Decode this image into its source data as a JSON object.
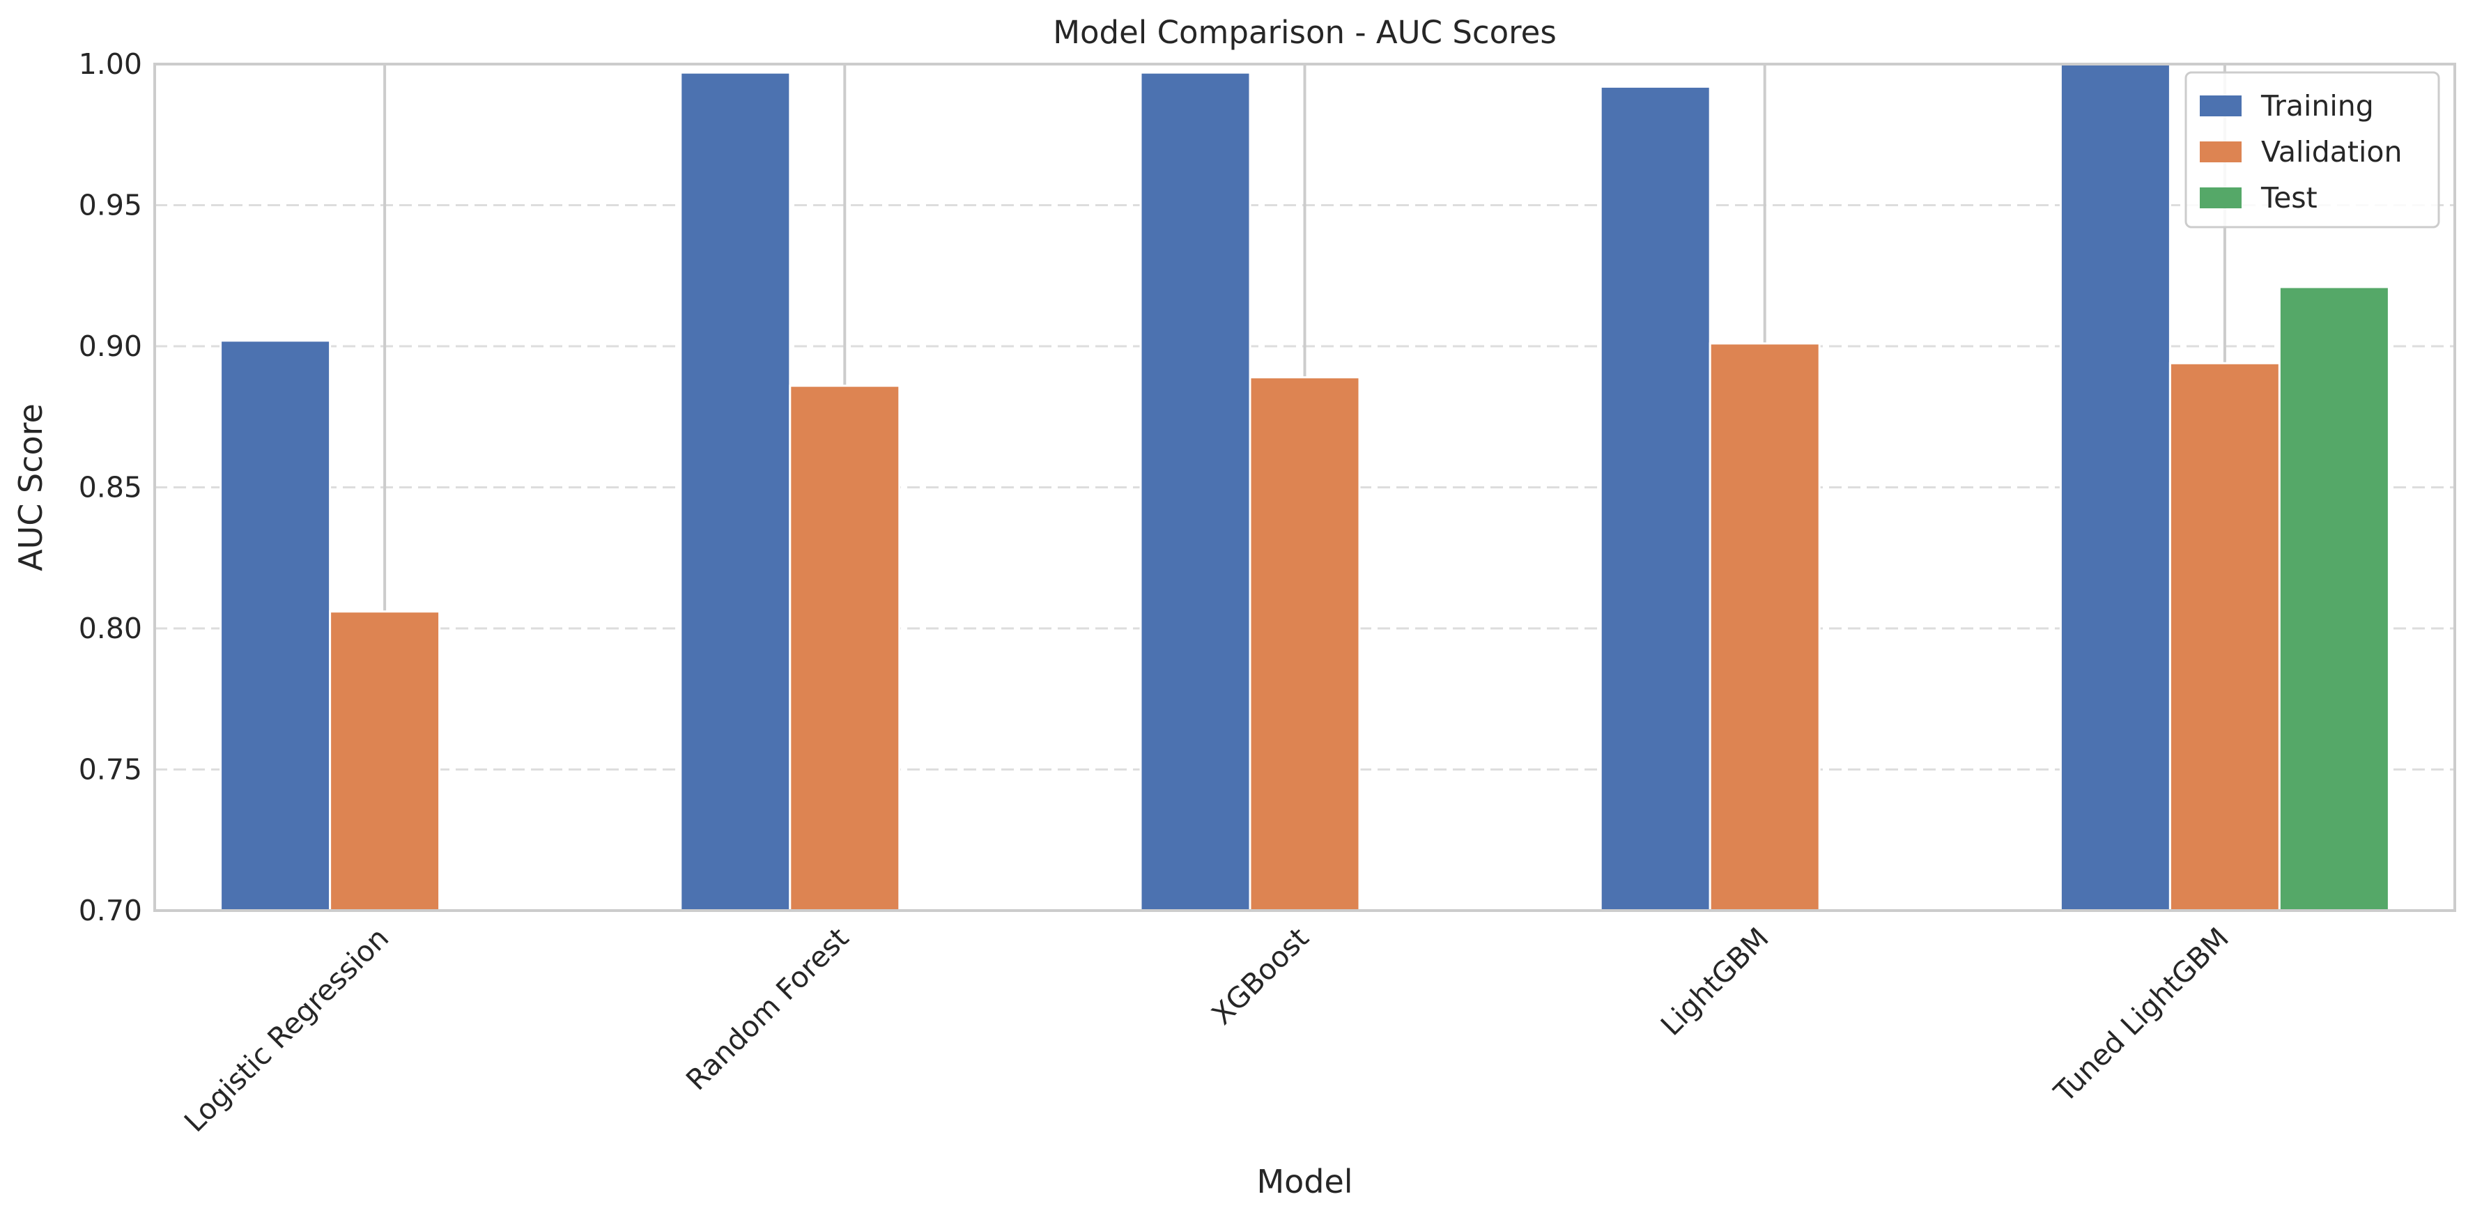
{
  "chart_data": {
    "type": "bar",
    "title": "Model Comparison - AUC Scores",
    "xlabel": "Model",
    "ylabel": "AUC Score",
    "ylim": [
      0.7,
      1.0
    ],
    "yticks": [
      "0.70",
      "0.75",
      "0.80",
      "0.85",
      "0.90",
      "0.95",
      "1.00"
    ],
    "categories": [
      "Logistic Regression",
      "Random Forest",
      "XGBoost",
      "LightGBM",
      "Tuned LightGBM"
    ],
    "series": [
      {
        "name": "Training",
        "color": "#4c72b0",
        "values": [
          0.902,
          0.997,
          0.997,
          0.992,
          1.0
        ]
      },
      {
        "name": "Validation",
        "color": "#dd8452",
        "values": [
          0.806,
          0.886,
          0.889,
          0.901,
          0.894
        ]
      },
      {
        "name": "Test",
        "color": "#55a868",
        "values": [
          null,
          null,
          null,
          null,
          0.921
        ]
      }
    ],
    "grid": "horizontal dashed",
    "legend_position": "top-right"
  }
}
